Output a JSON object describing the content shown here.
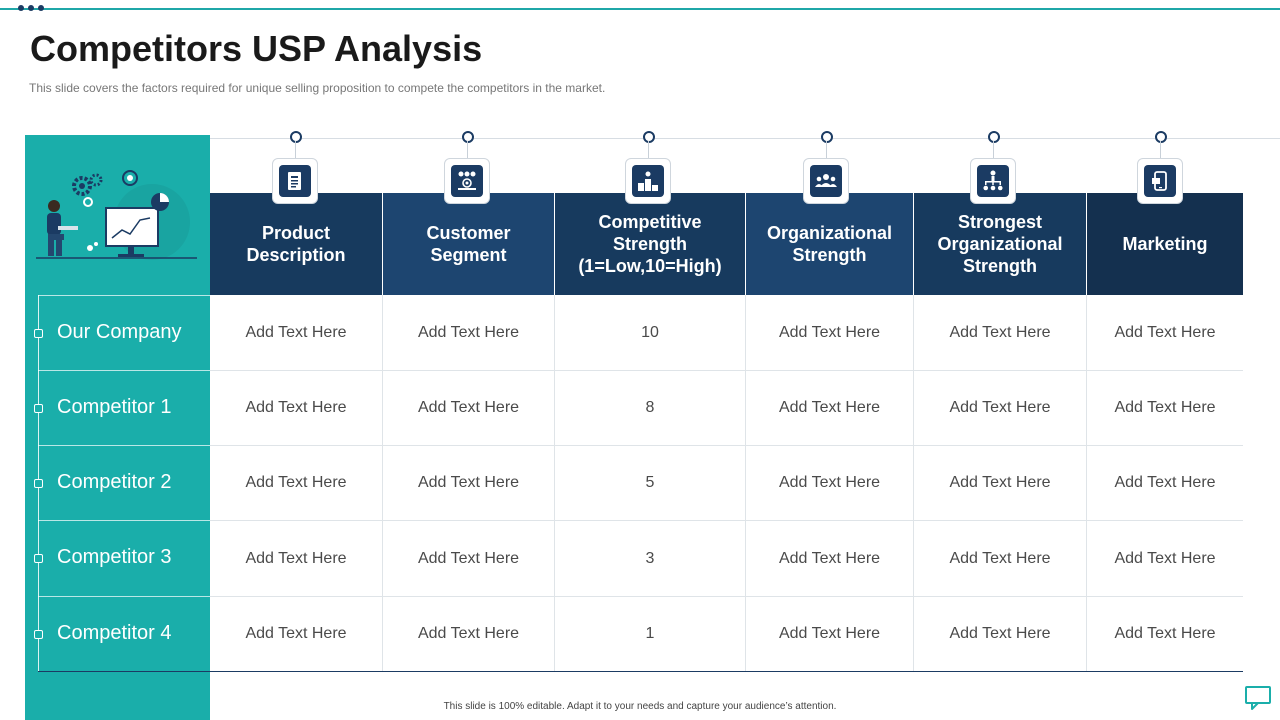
{
  "slide": {
    "title": "Competitors USP Analysis",
    "subtitle": "This slide covers the factors required for unique selling proposition to compete the competitors in the market.",
    "footer": "This slide is 100% editable. Adapt it to your needs and capture your audience’s attention."
  },
  "colors": {
    "teal": "#1aaeaa",
    "navy": "#1b3b63",
    "header_dark": "#173a5e",
    "header_mid": "#1d4570"
  },
  "table": {
    "headers": [
      {
        "label": "Product Description",
        "icon": "document-icon"
      },
      {
        "label": "Customer Segment",
        "icon": "audience-icon"
      },
      {
        "label": "Competitive Strength (1=Low,10=High)",
        "icon": "podium-icon"
      },
      {
        "label": "Organizational Strength",
        "icon": "team-icon"
      },
      {
        "label": "Strongest Organizational Strength",
        "icon": "org-chart-icon"
      },
      {
        "label": "Marketing",
        "icon": "mobile-marketing-icon"
      }
    ],
    "rows": [
      {
        "label": "Our Company",
        "cells": [
          "Add Text Here",
          "Add Text Here",
          "10",
          "Add Text Here",
          "Add Text Here",
          "Add Text Here"
        ]
      },
      {
        "label": "Competitor 1",
        "cells": [
          "Add Text Here",
          "Add Text Here",
          "8",
          "Add Text Here",
          "Add Text Here",
          "Add Text Here"
        ]
      },
      {
        "label": "Competitor 2",
        "cells": [
          "Add Text Here",
          "Add Text Here",
          "5",
          "Add Text Here",
          "Add Text Here",
          "Add Text Here"
        ]
      },
      {
        "label": "Competitor 3",
        "cells": [
          "Add Text Here",
          "Add Text Here",
          "3",
          "Add Text Here",
          "Add Text Here",
          "Add Text Here"
        ]
      },
      {
        "label": "Competitor 4",
        "cells": [
          "Add Text Here",
          "Add Text Here",
          "1",
          "Add Text Here",
          "Add Text Here",
          "Add Text Here"
        ]
      }
    ]
  },
  "illustration": {
    "icon": "analyst-at-desk-icon"
  },
  "chat": {
    "icon": "comment-icon"
  }
}
